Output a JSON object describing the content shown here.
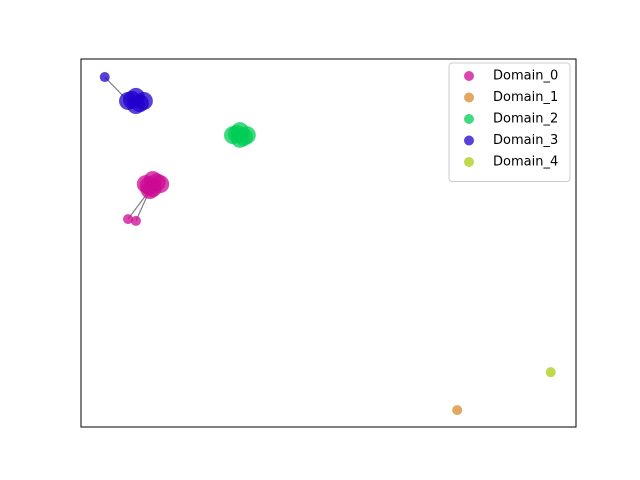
{
  "chart_data": {
    "type": "scatter",
    "xlim": [
      0,
      1
    ],
    "ylim": [
      0,
      1
    ],
    "legend": "upper right",
    "series": [
      {
        "name": "Domain_0",
        "color": "#cc0a93",
        "x": [
          0.095,
          0.111,
          0.139,
          0.131,
          0.145,
          0.16,
          0.145,
          0.137,
          0.153
        ],
        "y": [
          0.565,
          0.56,
          0.644,
          0.66,
          0.671,
          0.66,
          0.649,
          0.655,
          0.665
        ]
      },
      {
        "name": "Domain_1",
        "color": "#d98a2b",
        "x": [
          0.76
        ],
        "y": [
          0.046
        ]
      },
      {
        "name": "Domain_2",
        "color": "#00cc55",
        "x": [
          0.307,
          0.321,
          0.335,
          0.321,
          0.315,
          0.329
        ],
        "y": [
          0.793,
          0.804,
          0.793,
          0.783,
          0.796,
          0.788
        ]
      },
      {
        "name": "Domain_3",
        "color": "#2200cc",
        "x": [
          0.048,
          0.095,
          0.111,
          0.127,
          0.111,
          0.103,
          0.119
        ],
        "y": [
          0.951,
          0.886,
          0.897,
          0.886,
          0.875,
          0.889,
          0.88
        ]
      },
      {
        "name": "Domain_4",
        "color": "#aacc10",
        "x": [
          0.949
        ],
        "y": [
          0.149
        ]
      }
    ],
    "edges": [
      [
        [
          3,
          0
        ],
        [
          3,
          1
        ]
      ],
      [
        [
          0,
          0
        ],
        [
          0,
          2
        ]
      ],
      [
        [
          0,
          1
        ],
        [
          0,
          2
        ]
      ]
    ]
  }
}
